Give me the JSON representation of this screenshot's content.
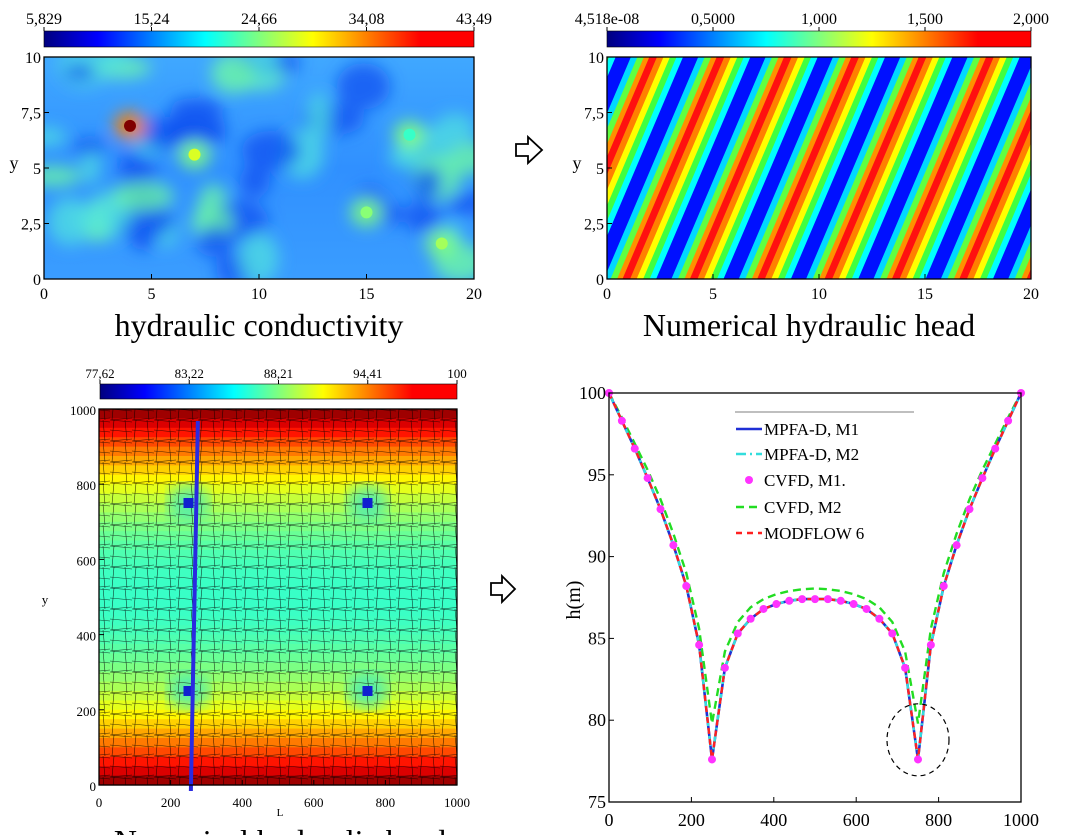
{
  "colors": {
    "jet": [
      "#00007f",
      "#0000ff",
      "#007fff",
      "#00ffff",
      "#7fff7f",
      "#ffff00",
      "#ff7f00",
      "#ff0000",
      "#7f0000"
    ],
    "mpfa_m1": "#1f2fd6",
    "mpfa_m2": "#33dddd",
    "cvfd_m1": "#ff33ff",
    "cvfd_m2": "#22dd22",
    "modflow": "#ff2020",
    "well_marker": "#1020d0",
    "section_line": "#2a2ae0"
  },
  "icons": [
    "right-arrow-icon",
    "right-arrow-icon",
    "right-arrow-icon"
  ],
  "chart_data": [
    {
      "id": "hydraulic-conductivity",
      "type": "heatmap",
      "title": "hydraulic conductivity",
      "xlabel": "",
      "ylabel": "y",
      "xlim": [
        0,
        20
      ],
      "ylim": [
        0,
        10
      ],
      "xticks": [
        "0",
        "5",
        "10",
        "15",
        "20"
      ],
      "yticks": [
        "0",
        "2,5",
        "5",
        "7,5",
        "10"
      ],
      "colorbar": {
        "min": 5.829,
        "max": 43.49,
        "ticks": [
          "5,829",
          "15,24",
          "24,66",
          "34,08",
          "43,49"
        ]
      },
      "hotspots": [
        {
          "x": 4.0,
          "y": 6.9,
          "value": 43.49
        },
        {
          "x": 7.0,
          "y": 5.6,
          "value": 28
        },
        {
          "x": 15.0,
          "y": 3.0,
          "value": 25
        },
        {
          "x": 18.5,
          "y": 1.6,
          "value": 26
        },
        {
          "x": 17.0,
          "y": 6.5,
          "value": 22
        }
      ]
    },
    {
      "id": "numerical-hydraulic-head",
      "type": "heatmap",
      "title": "Numerical hydraulic head",
      "xlabel": "",
      "ylabel": "y",
      "xlim": [
        0,
        20
      ],
      "ylim": [
        0,
        10
      ],
      "xticks": [
        "0",
        "5",
        "10",
        "15",
        "20"
      ],
      "yticks": [
        "0",
        "2,5",
        "5",
        "7,5",
        "10"
      ],
      "colorbar": {
        "min": 4.518e-08,
        "max": 2.0,
        "ticks": [
          "4,518e-08",
          "0,5000",
          "1,000",
          "1,500",
          "2,000"
        ]
      },
      "pattern": "diagonal sinusoidal bands, about 7 periods across the domain"
    },
    {
      "id": "numerical-hydraulic-head-mesh",
      "type": "heatmap",
      "title": "Numerical hydraulic head",
      "xlabel": "L",
      "ylabel": "y",
      "xlim": [
        0,
        1000
      ],
      "ylim": [
        0,
        1000
      ],
      "xticks": [
        "0",
        "200",
        "400",
        "600",
        "800",
        "1000"
      ],
      "yticks": [
        "0",
        "200",
        "400",
        "600",
        "800",
        "1000"
      ],
      "colorbar": {
        "min": 77.62,
        "max": 100,
        "ticks": [
          "77,62",
          "83,22",
          "88,21",
          "94,41",
          "100"
        ]
      },
      "wells": [
        {
          "x": 250,
          "y": 750
        },
        {
          "x": 750,
          "y": 750
        },
        {
          "x": 250,
          "y": 250
        },
        {
          "x": 750,
          "y": 250
        }
      ],
      "section_line_x": 265
    },
    {
      "id": "head-profile",
      "type": "line",
      "xlabel": "",
      "ylabel": "h(m)",
      "xlim": [
        0,
        1000
      ],
      "ylim": [
        75,
        100
      ],
      "xticks": [
        "0",
        "200",
        "400",
        "600",
        "800",
        "1000"
      ],
      "yticks": [
        "75",
        "80",
        "85",
        "90",
        "95",
        "100"
      ],
      "x": [
        0,
        31.25,
        62.5,
        93.75,
        125,
        156.25,
        187.5,
        218.75,
        250,
        281.25,
        312.5,
        343.75,
        375,
        406.25,
        437.5,
        468.75,
        500,
        531.25,
        562.5,
        593.75,
        625,
        656.25,
        687.5,
        718.75,
        750,
        781.25,
        812.5,
        843.75,
        875,
        906.25,
        937.5,
        968.75,
        1000
      ],
      "series": [
        {
          "name": "MPFA-D, M1",
          "style": "solid",
          "values": [
            100,
            98.3,
            96.6,
            94.8,
            92.9,
            90.7,
            88.2,
            84.6,
            77.6,
            83.2,
            85.3,
            86.2,
            86.8,
            87.1,
            87.3,
            87.4,
            87.4,
            87.4,
            87.3,
            87.1,
            86.8,
            86.2,
            85.3,
            83.2,
            77.6,
            84.6,
            88.2,
            90.7,
            92.9,
            94.8,
            96.6,
            98.3,
            100
          ]
        },
        {
          "name": "MPFA-D, M2",
          "style": "dashdot",
          "values": [
            100,
            98.3,
            96.6,
            94.8,
            92.9,
            90.7,
            88.2,
            84.6,
            77.6,
            83.2,
            85.3,
            86.2,
            86.8,
            87.1,
            87.3,
            87.4,
            87.4,
            87.4,
            87.3,
            87.1,
            86.8,
            86.2,
            85.3,
            83.2,
            77.6,
            84.6,
            88.2,
            90.7,
            92.9,
            94.8,
            96.6,
            98.3,
            100
          ]
        },
        {
          "name": "CVFD, M1.",
          "style": "markers",
          "values": [
            100,
            98.3,
            96.6,
            94.8,
            92.9,
            90.7,
            88.2,
            84.6,
            77.6,
            83.2,
            85.3,
            86.2,
            86.8,
            87.1,
            87.3,
            87.4,
            87.4,
            87.4,
            87.3,
            87.1,
            86.8,
            86.2,
            85.3,
            83.2,
            77.6,
            84.6,
            88.2,
            90.7,
            92.9,
            94.8,
            96.6,
            98.3,
            100
          ]
        },
        {
          "name": "CVFD, M2",
          "style": "dashed",
          "values": [
            100,
            98.5,
            96.9,
            95.3,
            93.5,
            91.4,
            89.0,
            85.6,
            79.8,
            84.2,
            86.0,
            86.9,
            87.4,
            87.7,
            87.9,
            88.0,
            88.05,
            88.0,
            87.9,
            87.7,
            87.4,
            86.9,
            86.0,
            84.2,
            79.8,
            85.6,
            89.0,
            91.4,
            93.5,
            95.3,
            96.9,
            98.5,
            100
          ]
        },
        {
          "name": "MODFLOW 6",
          "style": "dashed",
          "values": [
            100,
            98.3,
            96.6,
            94.8,
            92.9,
            90.7,
            88.2,
            84.6,
            77.6,
            83.2,
            85.3,
            86.2,
            86.8,
            87.1,
            87.3,
            87.4,
            87.4,
            87.4,
            87.3,
            87.1,
            86.8,
            86.2,
            85.3,
            83.2,
            77.6,
            84.6,
            88.2,
            90.7,
            92.9,
            94.8,
            96.6,
            98.3,
            100
          ]
        }
      ],
      "highlight": {
        "x": 750,
        "y": 78.8,
        "shape": "dashed ellipse"
      }
    }
  ]
}
